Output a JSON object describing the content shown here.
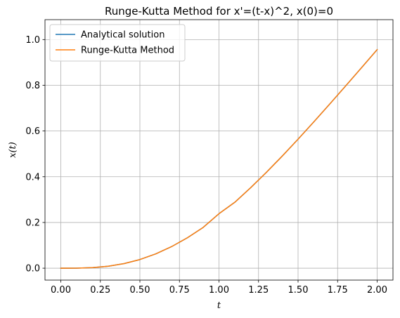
{
  "chart_data": {
    "type": "line",
    "title": "Runge-Kutta Method for x'=(t-x)^2, x(0)=0",
    "xlabel": "t",
    "ylabel": "x(t)",
    "xlim": [
      -0.1,
      2.1
    ],
    "ylim": [
      -0.052,
      1.087
    ],
    "x_ticks": [
      0.0,
      0.25,
      0.5,
      0.75,
      1.0,
      1.25,
      1.5,
      1.75,
      2.0
    ],
    "x_tick_labels": [
      "0.00",
      "0.25",
      "0.50",
      "0.75",
      "1.00",
      "1.25",
      "1.50",
      "1.75",
      "2.00"
    ],
    "y_ticks": [
      0.0,
      0.2,
      0.4,
      0.6,
      0.8,
      1.0
    ],
    "y_tick_labels": [
      "0.0",
      "0.2",
      "0.4",
      "0.6",
      "0.8",
      "1.0"
    ],
    "grid": true,
    "legend_position": "top-left",
    "x": [
      0.0,
      0.1,
      0.2,
      0.3,
      0.4,
      0.5,
      0.6,
      0.7,
      0.8,
      0.9,
      1.0,
      1.1,
      1.2,
      1.3,
      1.4,
      1.5,
      1.6,
      1.7,
      1.8,
      1.9,
      2.0
    ],
    "series": [
      {
        "name": "Analytical solution",
        "color": "#1f77b4",
        "values": [
          0.0,
          0.0003,
          0.0026,
          0.0087,
          0.0201,
          0.0379,
          0.0626,
          0.0943,
          0.133,
          0.1783,
          0.2384,
          0.2883,
          0.3518,
          0.4195,
          0.4905,
          0.5643,
          0.6403,
          0.7178,
          0.7965,
          0.876,
          0.956
        ]
      },
      {
        "name": "Runge-Kutta Method",
        "color": "#ff7f0e",
        "values": [
          0.0,
          0.0003,
          0.0026,
          0.0087,
          0.0201,
          0.0379,
          0.0626,
          0.0943,
          0.133,
          0.1783,
          0.2384,
          0.2883,
          0.3518,
          0.4195,
          0.4905,
          0.5643,
          0.6403,
          0.7178,
          0.7965,
          0.876,
          0.956
        ]
      }
    ]
  }
}
